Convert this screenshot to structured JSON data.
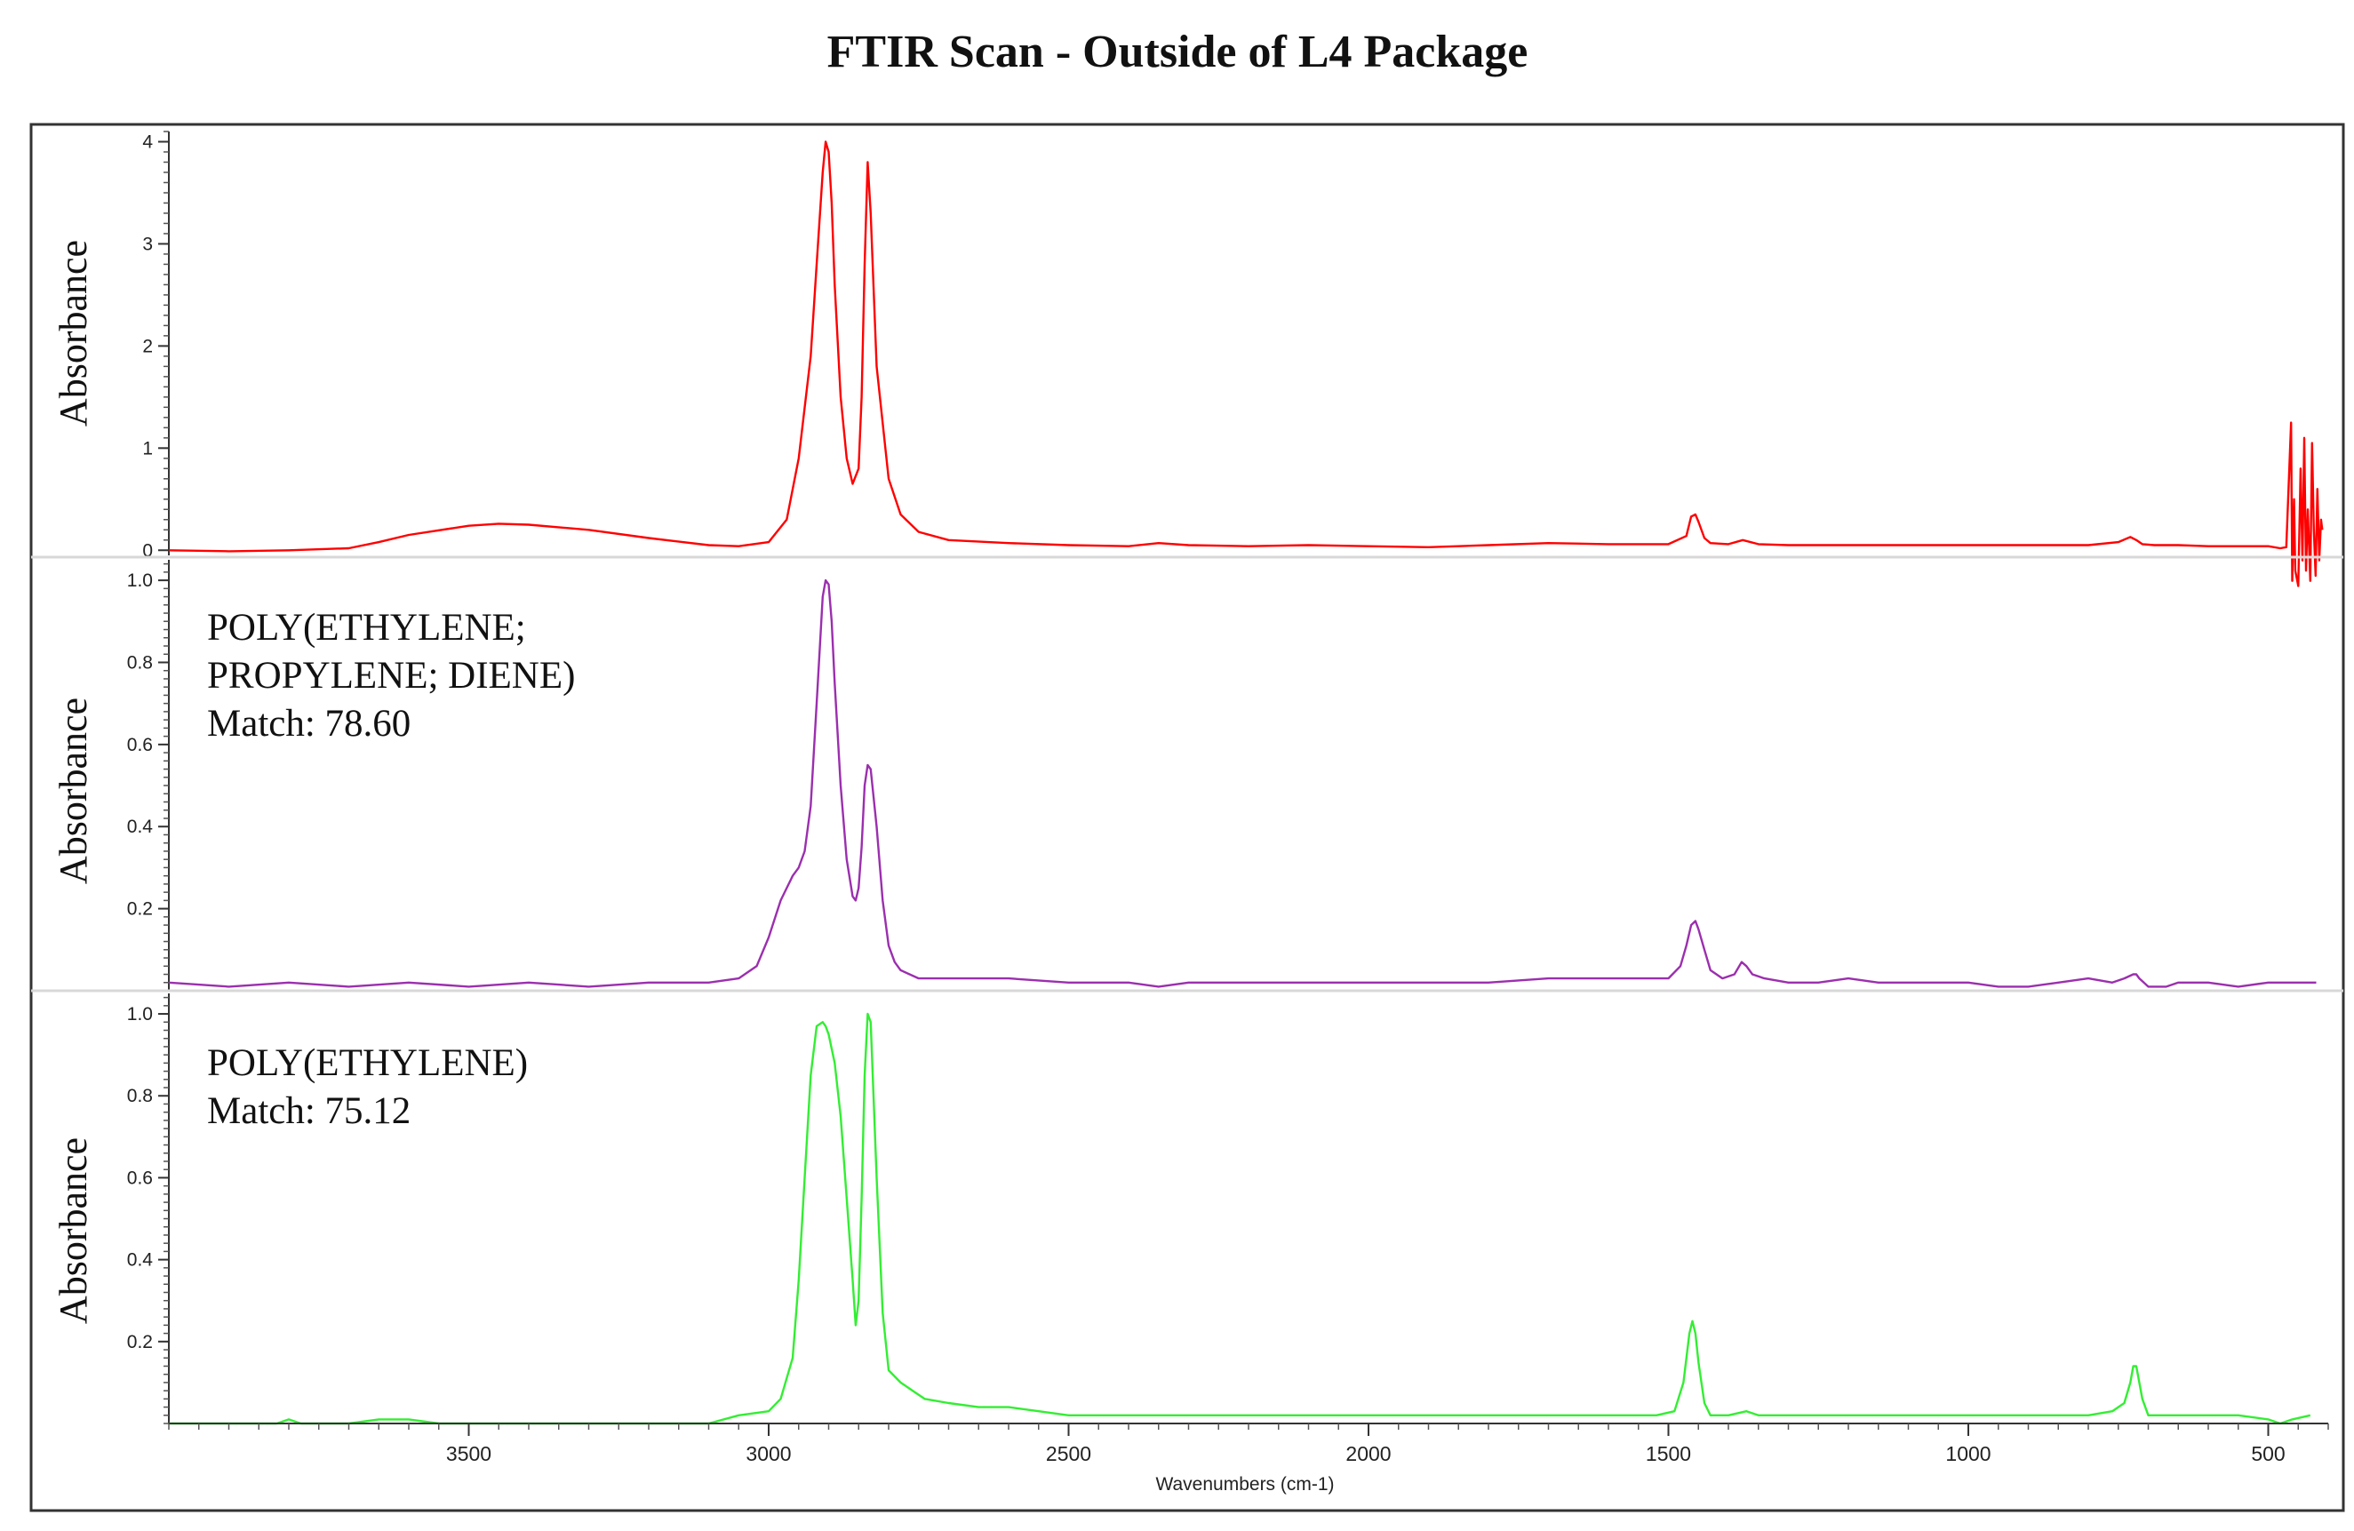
{
  "title": "FTIR Scan - Outside of L4 Package",
  "chart_data": {
    "type": "line",
    "title": "FTIR Scan - Outside of L4 Package",
    "xlabel": "Wavenumbers (cm-1)",
    "xlim": [
      4000,
      400
    ],
    "x_reversed": true,
    "xticks": [
      3500,
      3000,
      2500,
      2000,
      1500,
      1000,
      500
    ],
    "grid": false,
    "panels": [
      {
        "ylabel": "Absorbance",
        "ylim": [
          -0.05,
          4.1
        ],
        "yticks": [
          0,
          1,
          2,
          3,
          4
        ],
        "annotation": [],
        "series": [
          {
            "color": "#ff0000",
            "x": [
              4000,
              3900,
              3800,
              3700,
              3650,
              3600,
              3500,
              3450,
              3400,
              3300,
              3200,
              3100,
              3050,
              3000,
              2970,
              2950,
              2930,
              2920,
              2910,
              2905,
              2900,
              2895,
              2890,
              2880,
              2870,
              2860,
              2850,
              2845,
              2840,
              2835,
              2830,
              2820,
              2800,
              2780,
              2750,
              2700,
              2600,
              2500,
              2400,
              2350,
              2300,
              2200,
              2100,
              2000,
              1900,
              1800,
              1700,
              1600,
              1500,
              1470,
              1462,
              1455,
              1450,
              1440,
              1430,
              1400,
              1376,
              1350,
              1300,
              1200,
              1100,
              1000,
              900,
              800,
              750,
              730,
              720,
              710,
              690,
              650,
              600,
              550,
              500,
              480,
              470,
              462,
              460,
              457,
              455,
              450,
              446,
              443,
              440,
              437,
              434,
              430,
              427,
              424,
              421,
              418,
              415,
              412,
              410
            ],
            "y": [
              0.0,
              -0.01,
              0.0,
              0.02,
              0.08,
              0.15,
              0.24,
              0.26,
              0.25,
              0.2,
              0.12,
              0.05,
              0.04,
              0.08,
              0.3,
              0.9,
              1.9,
              2.8,
              3.7,
              4.0,
              3.9,
              3.4,
              2.6,
              1.5,
              0.9,
              0.65,
              0.8,
              1.5,
              2.8,
              3.8,
              3.3,
              1.8,
              0.7,
              0.35,
              0.18,
              0.1,
              0.07,
              0.05,
              0.04,
              0.07,
              0.05,
              0.04,
              0.05,
              0.04,
              0.03,
              0.05,
              0.07,
              0.06,
              0.06,
              0.14,
              0.33,
              0.35,
              0.28,
              0.12,
              0.07,
              0.06,
              0.1,
              0.06,
              0.05,
              0.05,
              0.05,
              0.05,
              0.05,
              0.05,
              0.08,
              0.13,
              0.1,
              0.06,
              0.05,
              0.05,
              0.04,
              0.04,
              0.04,
              0.02,
              0.03,
              1.25,
              -0.3,
              0.5,
              -0.2,
              -0.35,
              0.8,
              -0.1,
              1.1,
              -0.2,
              0.4,
              -0.3,
              1.05,
              0.2,
              -0.25,
              0.6,
              -0.1,
              0.3,
              0.2
            ]
          }
        ]
      },
      {
        "ylabel": "Absorbance",
        "ylim": [
          0.0,
          1.05
        ],
        "yticks": [
          0.2,
          0.4,
          0.6,
          0.8,
          1.0
        ],
        "annotation": [
          "POLY(ETHYLENE;",
          "PROPYLENE; DIENE)",
          "Match: 78.60"
        ],
        "series": [
          {
            "color": "#9b2fae",
            "x": [
              4000,
              3900,
              3800,
              3700,
              3600,
              3500,
              3400,
              3300,
              3200,
              3100,
              3050,
              3020,
              3000,
              2980,
              2960,
              2950,
              2940,
              2930,
              2920,
              2910,
              2905,
              2900,
              2895,
              2890,
              2880,
              2870,
              2860,
              2855,
              2850,
              2845,
              2840,
              2835,
              2830,
              2820,
              2810,
              2800,
              2790,
              2780,
              2750,
              2700,
              2600,
              2500,
              2400,
              2350,
              2300,
              2200,
              2100,
              2000,
              1900,
              1800,
              1700,
              1600,
              1500,
              1480,
              1470,
              1462,
              1455,
              1450,
              1440,
              1430,
              1410,
              1390,
              1378,
              1370,
              1360,
              1340,
              1300,
              1250,
              1200,
              1150,
              1100,
              1000,
              950,
              900,
              850,
              800,
              760,
              740,
              725,
              720,
              715,
              700,
              690,
              670,
              650,
              600,
              550,
              500,
              450,
              420
            ],
            "y": [
              0.02,
              0.01,
              0.02,
              0.01,
              0.02,
              0.01,
              0.02,
              0.01,
              0.02,
              0.02,
              0.03,
              0.06,
              0.13,
              0.22,
              0.28,
              0.3,
              0.34,
              0.45,
              0.7,
              0.96,
              1.0,
              0.99,
              0.9,
              0.75,
              0.5,
              0.32,
              0.23,
              0.22,
              0.25,
              0.35,
              0.5,
              0.55,
              0.54,
              0.4,
              0.22,
              0.11,
              0.07,
              0.05,
              0.03,
              0.03,
              0.03,
              0.02,
              0.02,
              0.01,
              0.02,
              0.02,
              0.02,
              0.02,
              0.02,
              0.02,
              0.03,
              0.03,
              0.03,
              0.06,
              0.11,
              0.16,
              0.17,
              0.15,
              0.1,
              0.05,
              0.03,
              0.04,
              0.07,
              0.06,
              0.04,
              0.03,
              0.02,
              0.02,
              0.03,
              0.02,
              0.02,
              0.02,
              0.01,
              0.01,
              0.02,
              0.03,
              0.02,
              0.03,
              0.04,
              0.04,
              0.03,
              0.01,
              0.01,
              0.01,
              0.02,
              0.02,
              0.01,
              0.02,
              0.02,
              0.02
            ]
          }
        ]
      },
      {
        "ylabel": "Absorbance",
        "ylim": [
          0.0,
          1.05
        ],
        "yticks": [
          0.2,
          0.4,
          0.6,
          0.8,
          1.0
        ],
        "annotation": [
          "POLY(ETHYLENE)",
          "Match: 75.12"
        ],
        "series": [
          {
            "color": "#33ee33",
            "x": [
              4000,
              3900,
              3820,
              3800,
              3780,
              3700,
              3650,
              3600,
              3550,
              3500,
              3400,
              3300,
              3200,
              3100,
              3050,
              3000,
              2980,
              2960,
              2950,
              2940,
              2930,
              2920,
              2910,
              2905,
              2900,
              2890,
              2880,
              2870,
              2860,
              2855,
              2850,
              2845,
              2840,
              2835,
              2830,
              2820,
              2810,
              2800,
              2780,
              2760,
              2740,
              2700,
              2650,
              2600,
              2550,
              2500,
              2400,
              2300,
              2200,
              2100,
              2000,
              1900,
              1800,
              1700,
              1600,
              1520,
              1490,
              1475,
              1465,
              1460,
              1455,
              1450,
              1440,
              1430,
              1400,
              1370,
              1350,
              1300,
              1200,
              1100,
              1000,
              900,
              800,
              760,
              740,
              730,
              725,
              720,
              715,
              710,
              700,
              680,
              650,
              600,
              550,
              500,
              480,
              460,
              430
            ],
            "y": [
              0.0,
              0.0,
              0.0,
              0.01,
              0.0,
              0.0,
              0.01,
              0.01,
              0.0,
              0.0,
              0.0,
              0.0,
              0.0,
              0.0,
              0.02,
              0.03,
              0.06,
              0.16,
              0.35,
              0.6,
              0.85,
              0.97,
              0.98,
              0.97,
              0.95,
              0.88,
              0.75,
              0.55,
              0.35,
              0.24,
              0.3,
              0.55,
              0.85,
              1.0,
              0.98,
              0.6,
              0.27,
              0.13,
              0.1,
              0.08,
              0.06,
              0.05,
              0.04,
              0.04,
              0.03,
              0.02,
              0.02,
              0.02,
              0.02,
              0.02,
              0.02,
              0.02,
              0.02,
              0.02,
              0.02,
              0.02,
              0.03,
              0.1,
              0.22,
              0.25,
              0.22,
              0.15,
              0.05,
              0.02,
              0.02,
              0.03,
              0.02,
              0.02,
              0.02,
              0.02,
              0.02,
              0.02,
              0.02,
              0.03,
              0.05,
              0.1,
              0.14,
              0.14,
              0.1,
              0.06,
              0.02,
              0.02,
              0.02,
              0.02,
              0.02,
              0.01,
              0.0,
              0.01,
              0.02
            ]
          }
        ]
      }
    ]
  }
}
